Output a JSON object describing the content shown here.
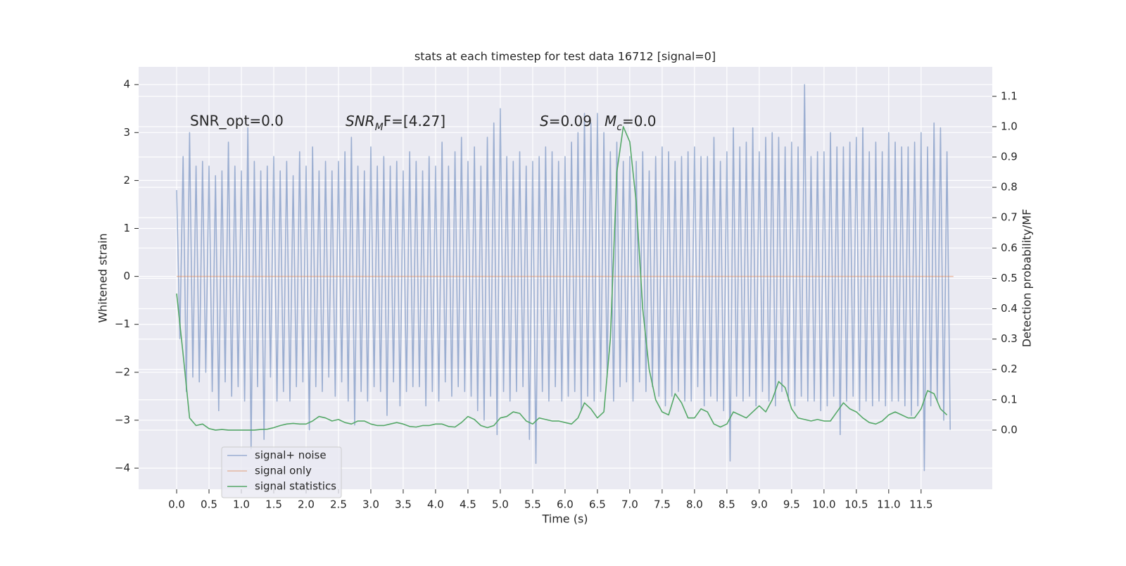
{
  "chart_data": {
    "type": "line",
    "title": "stats at each timestep for test data 16712 [signal=0]",
    "xlabel": "Time (s)",
    "ylabel": "Whitened strain",
    "y2label": "Detection probability/MF",
    "xlim": [
      -0.587,
      12.6
    ],
    "ylim": [
      -4.44,
      4.37
    ],
    "y2lim": [
      -0.195,
      1.197
    ],
    "grid": true,
    "legend": "lower left",
    "xticks": [
      {
        "value": 0,
        "label": "0.0"
      },
      0.5,
      {
        "value": 1,
        "label": "1.0"
      },
      1.5,
      {
        "value": 2,
        "label": "2.0"
      },
      2.5,
      {
        "value": 3,
        "label": "3.0"
      },
      3.5,
      {
        "value": 4,
        "label": "4.0"
      },
      4.5,
      {
        "value": 5,
        "label": "5.0"
      },
      5.5,
      {
        "value": 6,
        "label": "6.0"
      },
      6.5,
      {
        "value": 7,
        "label": "7.0"
      },
      7.5,
      {
        "value": 8,
        "label": "8.0"
      },
      8.5,
      {
        "value": 9,
        "label": "9.0"
      },
      9.5,
      {
        "value": 10,
        "label": "10.0"
      },
      10.5,
      {
        "value": 11,
        "label": "11.0"
      },
      11.5
    ],
    "yticks": [
      {
        "value": -4,
        "label": "−4"
      },
      {
        "value": -3,
        "label": "−3"
      },
      {
        "value": -2,
        "label": "−2"
      },
      {
        "value": -1,
        "label": "−1"
      },
      0,
      1,
      2,
      3,
      4
    ],
    "y2ticks": [
      {
        "value": 0,
        "label": "0.0"
      },
      0.1,
      0.2,
      0.3,
      0.4,
      0.5,
      0.6,
      0.7,
      0.8,
      0.9,
      {
        "value": 1,
        "label": "1.0"
      },
      1.1
    ],
    "annotations": [
      {
        "text": "SNR_opt=0.0"
      },
      {
        "base": "SNR",
        "sub": "M",
        "rest": "F=[4.27]"
      },
      {
        "base": "S",
        "rest": "=0.09"
      },
      {
        "base": "M",
        "sub": "c",
        "rest": "=0.0"
      }
    ],
    "series": [
      {
        "name": "signal+ noise",
        "color": "#4c72b0",
        "opacity": 0.5,
        "axis": "y",
        "x": [
          0,
          0.05,
          0.1,
          0.15,
          0.2,
          0.25,
          0.3,
          0.35,
          0.4,
          0.45,
          0.5,
          0.55,
          0.6,
          0.65,
          0.7,
          0.75,
          0.8,
          0.85,
          0.9,
          0.95,
          1,
          1.05,
          1.1,
          1.15,
          1.2,
          1.25,
          1.3,
          1.35,
          1.4,
          1.45,
          1.5,
          1.55,
          1.6,
          1.65,
          1.7,
          1.75,
          1.8,
          1.85,
          1.9,
          1.95,
          2,
          2.05,
          2.1,
          2.15,
          2.2,
          2.25,
          2.3,
          2.35,
          2.4,
          2.45,
          2.5,
          2.55,
          2.6,
          2.65,
          2.7,
          2.75,
          2.8,
          2.85,
          2.9,
          2.95,
          3,
          3.05,
          3.1,
          3.15,
          3.2,
          3.25,
          3.3,
          3.35,
          3.4,
          3.45,
          3.5,
          3.55,
          3.6,
          3.65,
          3.7,
          3.75,
          3.8,
          3.85,
          3.9,
          3.95,
          4,
          4.05,
          4.1,
          4.15,
          4.2,
          4.25,
          4.3,
          4.35,
          4.4,
          4.45,
          4.5,
          4.55,
          4.6,
          4.65,
          4.7,
          4.75,
          4.8,
          4.85,
          4.9,
          4.95,
          5,
          5.05,
          5.1,
          5.15,
          5.2,
          5.25,
          5.3,
          5.35,
          5.4,
          5.45,
          5.5,
          5.55,
          5.6,
          5.65,
          5.7,
          5.75,
          5.8,
          5.85,
          5.9,
          5.95,
          6,
          6.05,
          6.1,
          6.15,
          6.2,
          6.25,
          6.3,
          6.35,
          6.4,
          6.45,
          6.5,
          6.55,
          6.6,
          6.65,
          6.7,
          6.75,
          6.8,
          6.85,
          6.9,
          6.95,
          7,
          7.05,
          7.1,
          7.15,
          7.2,
          7.25,
          7.3,
          7.35,
          7.4,
          7.45,
          7.5,
          7.55,
          7.6,
          7.65,
          7.7,
          7.75,
          7.8,
          7.85,
          7.9,
          7.95,
          8,
          8.05,
          8.1,
          8.15,
          8.2,
          8.25,
          8.3,
          8.35,
          8.4,
          8.45,
          8.5,
          8.55,
          8.6,
          8.65,
          8.7,
          8.75,
          8.8,
          8.85,
          8.9,
          8.95,
          9,
          9.05,
          9.1,
          9.15,
          9.2,
          9.25,
          9.3,
          9.35,
          9.4,
          9.45,
          9.5,
          9.55,
          9.6,
          9.65,
          9.7,
          9.75,
          9.8,
          9.85,
          9.9,
          9.95,
          10,
          10.05,
          10.1,
          10.15,
          10.2,
          10.25,
          10.3,
          10.35,
          10.4,
          10.45,
          10.5,
          10.55,
          10.6,
          10.65,
          10.7,
          10.75,
          10.8,
          10.85,
          10.9,
          10.95,
          11,
          11.05,
          11.1,
          11.15,
          11.2,
          11.25,
          11.3,
          11.35,
          11.4,
          11.45,
          11.5,
          11.55,
          11.6,
          11.65,
          11.7,
          11.75,
          11.8,
          11.85,
          11.9,
          11.95
        ],
        "values": [
          1.8,
          -1.3,
          2.5,
          -2.4,
          3.0,
          -2.1,
          2.3,
          -2.2,
          2.4,
          -2.0,
          2.3,
          -2.4,
          2.1,
          -2.8,
          2.2,
          -2.2,
          2.8,
          -2.5,
          2.3,
          -2.3,
          2.2,
          -2.6,
          3.1,
          -3.6,
          2.4,
          -2.3,
          2.2,
          -3.4,
          2.3,
          -2.1,
          2.5,
          -2.6,
          2.2,
          -2.4,
          2.4,
          -2.6,
          2.1,
          -2.3,
          2.6,
          -2.2,
          2.3,
          -3.2,
          2.7,
          -2.3,
          2.2,
          -2.4,
          2.4,
          -2.1,
          2.2,
          -2.5,
          2.4,
          -2.2,
          2.6,
          -2.6,
          2.9,
          -3.1,
          2.3,
          -2.4,
          2.2,
          -2.6,
          2.7,
          -2.3,
          2.3,
          -2.4,
          2.5,
          -2.9,
          2.3,
          -2.2,
          2.4,
          -2.7,
          2.2,
          -2.4,
          2.6,
          -2.3,
          2.4,
          -2.3,
          2.2,
          -2.7,
          2.5,
          -2.4,
          2.3,
          -2.6,
          2.8,
          -2.2,
          2.3,
          -2.5,
          2.6,
          -2.3,
          2.9,
          -2.4,
          2.4,
          -2.5,
          2.7,
          -2.8,
          2.3,
          -3.0,
          2.9,
          -2.5,
          3.2,
          -3.3,
          3.5,
          -2.4,
          2.5,
          -2.6,
          2.4,
          -2.4,
          2.6,
          -2.3,
          2.3,
          -3.4,
          2.4,
          -3.9,
          2.5,
          -2.4,
          2.7,
          -2.6,
          2.6,
          -2.3,
          2.4,
          -2.6,
          2.5,
          -2.5,
          2.8,
          -2.4,
          3.0,
          -2.8,
          3.4,
          -2.5,
          3.2,
          -2.6,
          3.4,
          -2.4,
          3.0,
          -2.1,
          2.6,
          -2.6,
          2.8,
          -2.3,
          2.4,
          -2.2,
          2.5,
          -2.6,
          2.4,
          -2.2,
          2.6,
          -2.4,
          2.2,
          -2.3,
          2.5,
          -2.5,
          2.7,
          -2.7,
          2.6,
          -2.5,
          2.4,
          -2.4,
          2.5,
          -2.6,
          2.6,
          -2.6,
          2.7,
          -2.3,
          2.5,
          -2.7,
          2.5,
          -2.5,
          2.9,
          -2.6,
          2.4,
          -2.8,
          2.6,
          -3.85,
          3.1,
          -2.5,
          2.7,
          -2.6,
          2.8,
          -2.5,
          3.1,
          -2.7,
          2.6,
          -2.4,
          2.9,
          -2.6,
          3.0,
          -2.7,
          2.9,
          -2.4,
          2.7,
          -2.6,
          2.8,
          -2.7,
          2.7,
          -2.5,
          4.0,
          -2.6,
          2.5,
          -2.6,
          2.6,
          -2.8,
          2.6,
          -2.7,
          3.0,
          -2.5,
          2.7,
          -3.3,
          2.7,
          -2.6,
          2.8,
          -2.5,
          2.9,
          -2.8,
          3.1,
          -2.6,
          2.6,
          -2.7,
          2.8,
          -2.6,
          2.6,
          -2.7,
          3.0,
          -2.6,
          2.8,
          -2.6,
          2.7,
          -2.7,
          2.7,
          -2.9,
          2.8,
          -2.7,
          3.0,
          -4.05,
          2.7,
          -2.7,
          3.2,
          -2.6,
          3.1,
          -3.0,
          2.6,
          -3.2
        ]
      },
      {
        "name": "signal only",
        "color": "#dd8452",
        "opacity": 0.5,
        "axis": "y",
        "x": [
          0,
          12
        ],
        "values": [
          0,
          0
        ]
      },
      {
        "name": "signal statistics",
        "color": "#55a868",
        "opacity": 1,
        "axis": "y2",
        "x": [
          0,
          0.1,
          0.2,
          0.3,
          0.4,
          0.5,
          0.6,
          0.7,
          0.8,
          0.9,
          1,
          1.1,
          1.2,
          1.3,
          1.4,
          1.5,
          1.6,
          1.7,
          1.8,
          1.9,
          2,
          2.1,
          2.2,
          2.3,
          2.4,
          2.5,
          2.6,
          2.7,
          2.8,
          2.9,
          3,
          3.1,
          3.2,
          3.3,
          3.4,
          3.5,
          3.6,
          3.7,
          3.8,
          3.9,
          4,
          4.1,
          4.2,
          4.3,
          4.4,
          4.5,
          4.6,
          4.7,
          4.8,
          4.9,
          5,
          5.1,
          5.2,
          5.3,
          5.4,
          5.5,
          5.6,
          5.7,
          5.8,
          5.9,
          6,
          6.1,
          6.2,
          6.3,
          6.4,
          6.5,
          6.6,
          6.7,
          6.8,
          6.9,
          7,
          7.1,
          7.2,
          7.3,
          7.4,
          7.5,
          7.6,
          7.7,
          7.8,
          7.9,
          8,
          8.1,
          8.2,
          8.3,
          8.4,
          8.5,
          8.6,
          8.7,
          8.8,
          8.9,
          9,
          9.1,
          9.2,
          9.3,
          9.4,
          9.5,
          9.6,
          9.7,
          9.8,
          9.9,
          10,
          10.1,
          10.2,
          10.3,
          10.4,
          10.5,
          10.6,
          10.7,
          10.8,
          10.9,
          11,
          11.1,
          11.2,
          11.3,
          11.4,
          11.5,
          11.6,
          11.7,
          11.8,
          11.9
        ],
        "values": [
          0.45,
          0.25,
          0.04,
          0.015,
          0.02,
          0.005,
          0.0,
          0.002,
          0.0,
          0.0,
          0.0,
          0.0,
          0.0,
          0.002,
          0.003,
          0.008,
          0.015,
          0.02,
          0.022,
          0.02,
          0.02,
          0.03,
          0.045,
          0.04,
          0.03,
          0.035,
          0.025,
          0.02,
          0.03,
          0.03,
          0.02,
          0.015,
          0.015,
          0.02,
          0.025,
          0.02,
          0.012,
          0.01,
          0.015,
          0.015,
          0.02,
          0.02,
          0.012,
          0.01,
          0.025,
          0.045,
          0.035,
          0.015,
          0.008,
          0.015,
          0.04,
          0.045,
          0.06,
          0.055,
          0.03,
          0.02,
          0.04,
          0.035,
          0.03,
          0.03,
          0.025,
          0.02,
          0.04,
          0.09,
          0.07,
          0.04,
          0.06,
          0.3,
          0.85,
          1.0,
          0.95,
          0.75,
          0.4,
          0.2,
          0.1,
          0.06,
          0.05,
          0.12,
          0.09,
          0.04,
          0.04,
          0.07,
          0.06,
          0.02,
          0.01,
          0.02,
          0.06,
          0.05,
          0.04,
          0.06,
          0.08,
          0.06,
          0.1,
          0.16,
          0.14,
          0.07,
          0.04,
          0.035,
          0.03,
          0.035,
          0.03,
          0.03,
          0.06,
          0.09,
          0.07,
          0.06,
          0.04,
          0.025,
          0.02,
          0.03,
          0.05,
          0.06,
          0.05,
          0.04,
          0.04,
          0.07,
          0.13,
          0.12,
          0.07,
          0.05
        ]
      }
    ]
  }
}
